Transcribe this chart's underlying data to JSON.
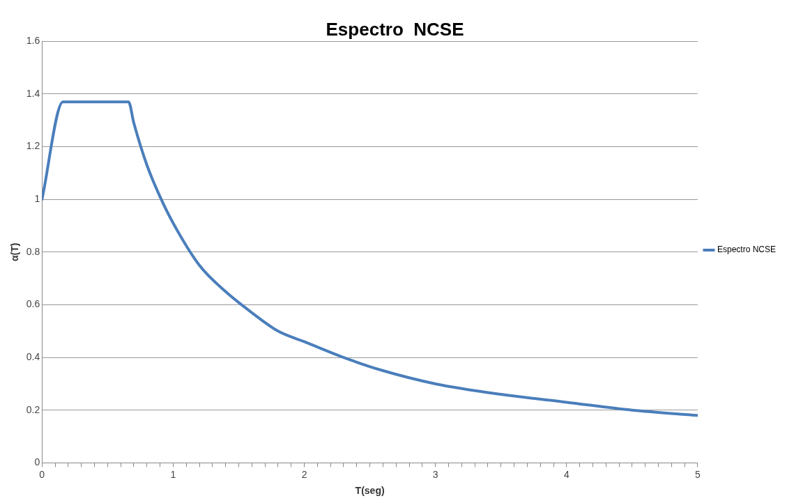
{
  "chart_data": {
    "type": "line",
    "title": "Espectro  NCSE",
    "xlabel": "T(seg)",
    "ylabel": "α(T)",
    "x": [
      0,
      0.16,
      0.66,
      0.7,
      0.8,
      0.9,
      1.0,
      1.2,
      1.4,
      1.6,
      1.8,
      2.0,
      2.3,
      2.6,
      3.0,
      3.5,
      4.0,
      4.5,
      5.0
    ],
    "series": [
      {
        "name": "Espectro NCSE",
        "color": "#4a7ebb",
        "values": [
          1.0,
          1.37,
          1.37,
          1.29,
          1.13,
          1.01,
          0.91,
          0.75,
          0.65,
          0.57,
          0.5,
          0.46,
          0.4,
          0.35,
          0.3,
          0.26,
          0.23,
          0.2,
          0.18
        ]
      }
    ],
    "xlim": [
      0,
      5
    ],
    "xticks": [
      0,
      {
        "value": 0.1,
        "label": null
      },
      {
        "value": 0.2,
        "label": null
      },
      {
        "value": 0.3,
        "label": null
      },
      {
        "value": 0.4,
        "label": null
      },
      {
        "value": 0.5,
        "label": null
      },
      {
        "value": 0.6,
        "label": null
      },
      {
        "value": 0.7,
        "label": null
      },
      {
        "value": 0.8,
        "label": null
      },
      {
        "value": 0.9,
        "label": null
      },
      1,
      {
        "value": 1.1,
        "label": null
      },
      {
        "value": 1.2,
        "label": null
      },
      {
        "value": 1.3,
        "label": null
      },
      {
        "value": 1.4,
        "label": null
      },
      {
        "value": 1.5,
        "label": null
      },
      {
        "value": 1.6,
        "label": null
      },
      {
        "value": 1.7,
        "label": null
      },
      {
        "value": 1.8,
        "label": null
      },
      {
        "value": 1.9,
        "label": null
      },
      2,
      {
        "value": 2.1,
        "label": null
      },
      {
        "value": 2.2,
        "label": null
      },
      {
        "value": 2.3,
        "label": null
      },
      {
        "value": 2.4,
        "label": null
      },
      {
        "value": 2.5,
        "label": null
      },
      {
        "value": 2.6,
        "label": null
      },
      {
        "value": 2.7,
        "label": null
      },
      {
        "value": 2.8,
        "label": null
      },
      {
        "value": 2.9,
        "label": null
      },
      3,
      {
        "value": 3.1,
        "label": null
      },
      {
        "value": 3.2,
        "label": null
      },
      {
        "value": 3.3,
        "label": null
      },
      {
        "value": 3.4,
        "label": null
      },
      {
        "value": 3.5,
        "label": null
      },
      {
        "value": 3.6,
        "label": null
      },
      {
        "value": 3.7,
        "label": null
      },
      {
        "value": 3.8,
        "label": null
      },
      {
        "value": 3.9,
        "label": null
      },
      4,
      {
        "value": 4.1,
        "label": null
      },
      {
        "value": 4.2,
        "label": null
      },
      {
        "value": 4.3,
        "label": null
      },
      {
        "value": 4.4,
        "label": null
      },
      {
        "value": 4.5,
        "label": null
      },
      {
        "value": 4.6,
        "label": null
      },
      {
        "value": 4.7,
        "label": null
      },
      {
        "value": 4.8,
        "label": null
      },
      {
        "value": 4.9,
        "label": null
      },
      5
    ],
    "ylim": [
      0,
      1.6
    ],
    "yticks": [
      0,
      0.2,
      0.4,
      0.6,
      0.8,
      1,
      1.2,
      1.4,
      1.6
    ],
    "grid": "y",
    "legend": "right",
    "marker": "none",
    "line_style": "solid"
  }
}
